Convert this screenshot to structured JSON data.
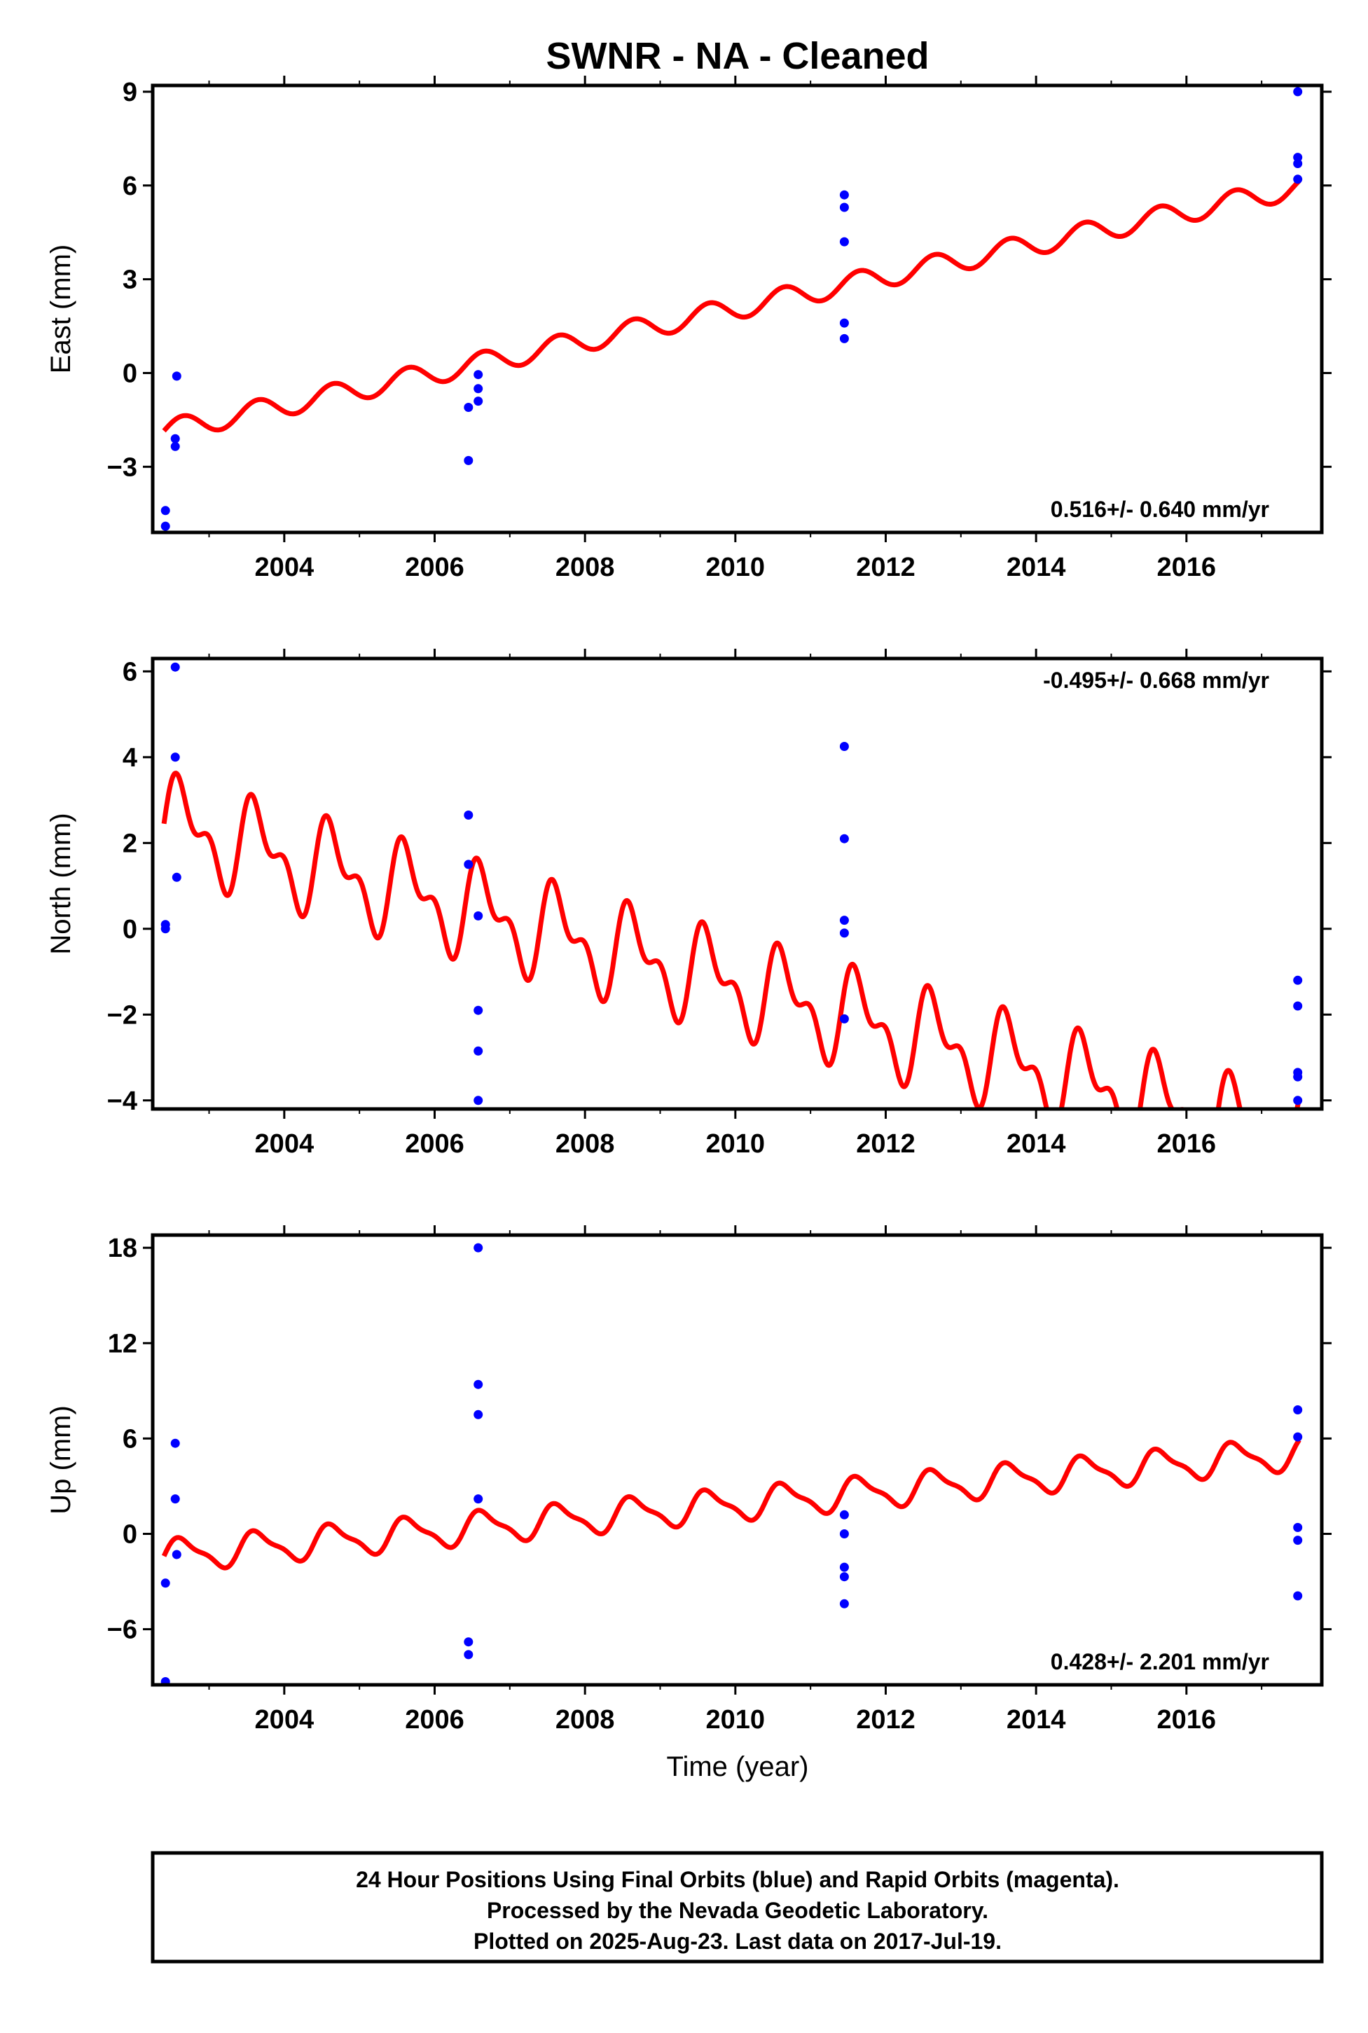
{
  "title": "SWNR  - NA - Cleaned",
  "xlabel": "Time (year)",
  "x_tick_labels": [
    "2004",
    "2006",
    "2008",
    "2010",
    "2012",
    "2014",
    "2016"
  ],
  "footer": {
    "line1": "24 Hour Positions Using Final Orbits (blue) and Rapid Orbits (magenta).",
    "line2": "Processed by the Nevada Geodetic Laboratory.",
    "line3": "Plotted on 2025-Aug-23. Last data on 2017-Jul-19."
  },
  "colors": {
    "final_orbits": "#0000ff",
    "model": "#ff0000",
    "frame": "#000000"
  },
  "chart_data": [
    {
      "type": "scatter",
      "ylabel": "East (mm)",
      "rate_label": "0.516+/- 0.640 mm/yr",
      "rate_position": "bottom-right",
      "xlim": [
        2002.25,
        2017.8
      ],
      "ylim": [
        -5.1,
        9.2
      ],
      "yticks": [
        -3,
        0,
        3,
        6,
        9
      ],
      "y_tick_labels": [
        "−3",
        "0",
        "3",
        "6",
        "9"
      ],
      "xticks": [
        2004,
        2006,
        2008,
        2010,
        2012,
        2014,
        2016
      ],
      "model": {
        "start": 2002.4,
        "end": 2017.5,
        "y0": -1.85,
        "rate": 0.516,
        "annual_amp": 0.35,
        "semi_amp": 0.0,
        "phase": 0.0
      },
      "series": [
        {
          "points": [
            [
              2002.42,
              -4.4
            ],
            [
              2002.42,
              -4.9
            ],
            [
              2002.55,
              -2.1
            ],
            [
              2002.55,
              -2.35
            ],
            [
              2002.57,
              -0.1
            ],
            [
              2006.45,
              -2.8
            ],
            [
              2006.45,
              -1.1
            ],
            [
              2006.58,
              -0.05
            ],
            [
              2006.58,
              -0.5
            ],
            [
              2006.58,
              -0.9
            ],
            [
              2011.45,
              5.7
            ],
            [
              2011.45,
              5.3
            ],
            [
              2011.45,
              4.2
            ],
            [
              2011.45,
              1.6
            ],
            [
              2011.45,
              1.1
            ],
            [
              2017.48,
              9.0
            ],
            [
              2017.48,
              6.9
            ],
            [
              2017.48,
              6.7
            ],
            [
              2017.48,
              6.2
            ]
          ]
        }
      ]
    },
    {
      "type": "scatter",
      "ylabel": "North (mm)",
      "rate_label": "-0.495+/- 0.668 mm/yr",
      "rate_position": "top-right",
      "xlim": [
        2002.25,
        2017.8
      ],
      "ylim": [
        -4.2,
        6.3
      ],
      "yticks": [
        -4,
        -2,
        0,
        2,
        4,
        6
      ],
      "y_tick_labels": [
        "−4",
        "−2",
        "0",
        "2",
        "4",
        "6"
      ],
      "xticks": [
        2004,
        2006,
        2008,
        2010,
        2012,
        2014,
        2016
      ],
      "model": {
        "start": 2002.4,
        "end": 2017.5,
        "y0": 2.45,
        "rate": -0.495,
        "annual_amp": 0.9,
        "semi_amp": 0.55,
        "phase": 0.0
      },
      "series": [
        {
          "points": [
            [
              2002.42,
              0.0
            ],
            [
              2002.42,
              0.1
            ],
            [
              2002.55,
              6.1
            ],
            [
              2002.55,
              4.0
            ],
            [
              2002.57,
              1.2
            ],
            [
              2006.45,
              2.65
            ],
            [
              2006.45,
              1.5
            ],
            [
              2006.58,
              0.3
            ],
            [
              2006.58,
              -1.9
            ],
            [
              2006.58,
              -2.85
            ],
            [
              2006.58,
              -4.0
            ],
            [
              2011.45,
              4.25
            ],
            [
              2011.45,
              2.1
            ],
            [
              2011.45,
              0.2
            ],
            [
              2011.45,
              -0.1
            ],
            [
              2011.45,
              -2.1
            ],
            [
              2017.48,
              -1.2
            ],
            [
              2017.48,
              -1.8
            ],
            [
              2017.48,
              -3.35
            ],
            [
              2017.48,
              -3.45
            ],
            [
              2017.48,
              -4.0
            ]
          ]
        }
      ]
    },
    {
      "type": "scatter",
      "ylabel": "Up (mm)",
      "rate_label": "0.428+/- 2.201 mm/yr",
      "rate_position": "bottom-right",
      "xlim": [
        2002.25,
        2017.8
      ],
      "ylim": [
        -9.5,
        18.8
      ],
      "yticks": [
        -6,
        0,
        6,
        12,
        18
      ],
      "y_tick_labels": [
        "−6",
        "0",
        "6",
        "12",
        "18"
      ],
      "xticks": [
        2004,
        2006,
        2008,
        2010,
        2012,
        2014,
        2016
      ],
      "model": {
        "start": 2002.4,
        "end": 2017.5,
        "y0": -1.4,
        "rate": 0.428,
        "annual_amp": 0.95,
        "semi_amp": 0.3,
        "phase": 0.0
      },
      "series": [
        {
          "points": [
            [
              2002.42,
              -3.1
            ],
            [
              2002.42,
              -9.3
            ],
            [
              2002.55,
              5.7
            ],
            [
              2002.55,
              2.2
            ],
            [
              2002.57,
              -1.3
            ],
            [
              2006.45,
              -6.8
            ],
            [
              2006.45,
              -7.6
            ],
            [
              2006.58,
              18.0
            ],
            [
              2006.58,
              9.4
            ],
            [
              2006.58,
              7.5
            ],
            [
              2006.58,
              2.2
            ],
            [
              2011.45,
              1.2
            ],
            [
              2011.45,
              0.0
            ],
            [
              2011.45,
              -2.1
            ],
            [
              2011.45,
              -2.7
            ],
            [
              2011.45,
              -4.4
            ],
            [
              2017.48,
              7.8
            ],
            [
              2017.48,
              6.1
            ],
            [
              2017.48,
              0.4
            ],
            [
              2017.48,
              -0.4
            ],
            [
              2017.48,
              -3.9
            ]
          ]
        }
      ]
    }
  ]
}
